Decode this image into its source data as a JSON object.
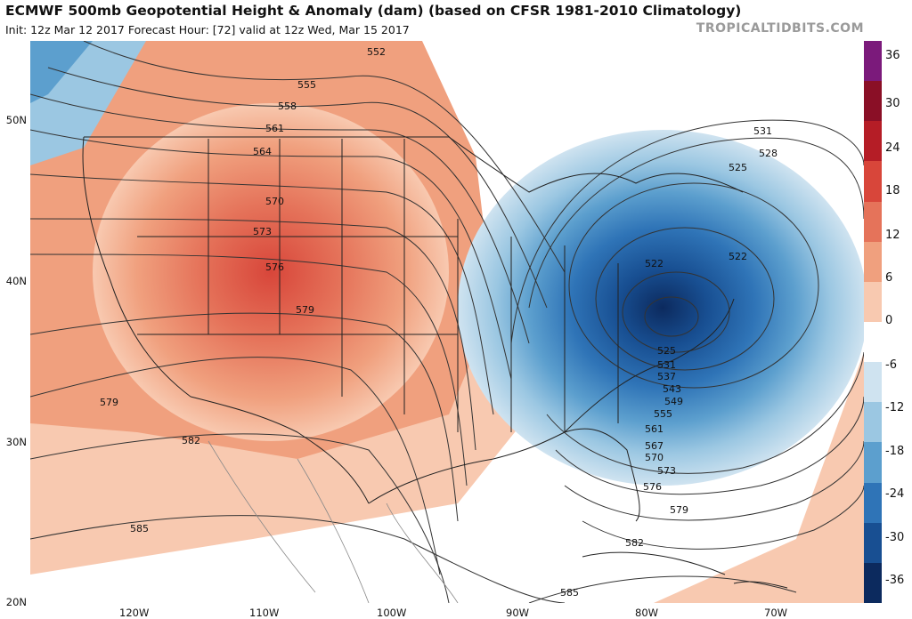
{
  "header": {
    "title": "ECMWF 500mb Geopotential Height & Anomaly (dam) (based on CFSR 1981-2010 Climatology)",
    "subtitle": "Init: 12z Mar 12 2017   Forecast Hour: [72]   valid at 12z Wed, Mar 15 2017",
    "brand": "TROPICALTIDBITS.COM"
  },
  "colorbar": {
    "ticks": [
      "36",
      "30",
      "24",
      "18",
      "12",
      "6",
      "0",
      "-6",
      "-12",
      "-18",
      "-24",
      "-30",
      "-36"
    ],
    "colors": [
      "#7b1a7b",
      "#8a0f26",
      "#b51d26",
      "#d8463a",
      "#e5735a",
      "#f0a07e",
      "#f8c9b0",
      "#ffffff",
      "#cfe3f0",
      "#9bc7e2",
      "#5c9fce",
      "#2f74b7",
      "#184f92",
      "#0c2a5e"
    ]
  },
  "axes": {
    "lat_labels": [
      "50N",
      "40N",
      "30N",
      "20N"
    ],
    "lon_labels": [
      "120W",
      "110W",
      "100W",
      "90W",
      "80W",
      "70W"
    ]
  },
  "contours": {
    "labels": [
      "552",
      "555",
      "558",
      "561",
      "564",
      "570",
      "573",
      "576",
      "579",
      "579",
      "582",
      "585",
      "531",
      "528",
      "525",
      "522",
      "522",
      "525",
      "531",
      "537",
      "543",
      "549",
      "555",
      "561",
      "567",
      "570",
      "573",
      "576",
      "579",
      "582",
      "585"
    ]
  }
}
